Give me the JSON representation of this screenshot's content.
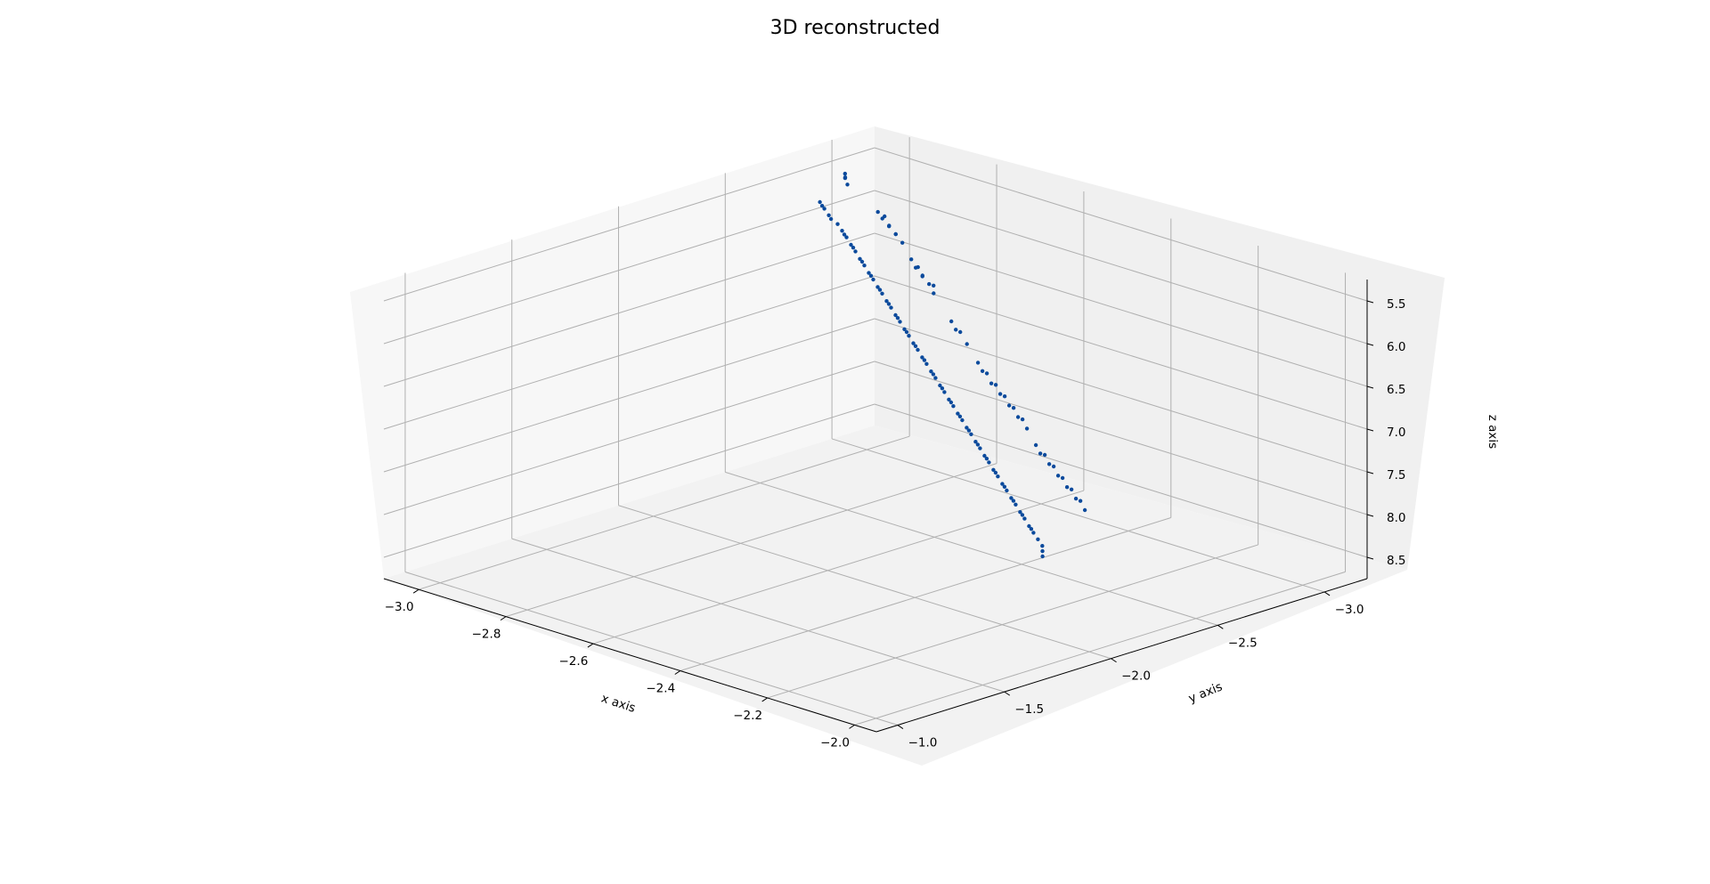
{
  "chart_data": {
    "type": "scatter",
    "title": "3D reconstructed",
    "xlabel": "x axis",
    "ylabel": "y axis",
    "zlabel": "z axis",
    "xlim": [
      -3.08,
      -1.95
    ],
    "ylim": [
      -3.2,
      -0.9
    ],
    "zlim": [
      5.25,
      8.75
    ],
    "z_inverted": true,
    "x_ticks": [
      -3.0,
      -2.8,
      -2.6,
      -2.4,
      -2.2,
      -2.0
    ],
    "x_tick_labels": [
      "−3.0",
      "−2.8",
      "−2.6",
      "−2.4",
      "−2.2",
      "−2.0"
    ],
    "y_ticks": [
      -3.0,
      -2.5,
      -2.0,
      -1.5,
      -1.0
    ],
    "y_tick_labels": [
      "−3.0",
      "−2.5",
      "−2.0",
      "−1.5",
      "−1.0"
    ],
    "z_ticks": [
      5.5,
      6.0,
      6.5,
      7.0,
      7.5,
      8.0,
      8.5
    ],
    "z_tick_labels": [
      "5.5",
      "6.0",
      "6.5",
      "7.0",
      "7.5",
      "8.0",
      "8.5"
    ],
    "grid": true,
    "series": [
      {
        "color": "#0b4a9c",
        "points": [
          [
            -2.99,
            -2.76,
            5.65
          ],
          [
            -2.97,
            -2.74,
            5.68
          ],
          [
            -2.95,
            -2.72,
            5.71
          ],
          [
            -2.92,
            -2.7,
            5.75
          ],
          [
            -2.9,
            -2.68,
            5.78
          ],
          [
            -2.88,
            -2.66,
            5.81
          ],
          [
            -2.86,
            -2.64,
            5.85
          ],
          [
            -2.84,
            -2.62,
            5.88
          ],
          [
            -2.82,
            -2.6,
            5.92
          ],
          [
            -2.8,
            -2.58,
            5.95
          ],
          [
            -2.78,
            -2.56,
            5.99
          ],
          [
            -2.76,
            -2.54,
            6.02
          ],
          [
            -2.74,
            -2.52,
            6.06
          ],
          [
            -2.72,
            -2.5,
            6.09
          ],
          [
            -2.7,
            -2.48,
            6.13
          ],
          [
            -2.68,
            -2.46,
            6.16
          ],
          [
            -2.66,
            -2.44,
            6.2
          ],
          [
            -2.64,
            -2.42,
            6.23
          ],
          [
            -2.62,
            -2.4,
            6.27
          ],
          [
            -2.6,
            -2.38,
            6.3
          ],
          [
            -2.58,
            -2.36,
            6.34
          ],
          [
            -2.56,
            -2.34,
            6.37
          ],
          [
            -2.54,
            -2.32,
            6.41
          ],
          [
            -2.52,
            -2.3,
            6.44
          ],
          [
            -2.5,
            -2.28,
            6.48
          ],
          [
            -2.48,
            -2.26,
            6.51
          ],
          [
            -2.46,
            -2.24,
            6.55
          ],
          [
            -2.44,
            -2.22,
            6.58
          ],
          [
            -2.42,
            -2.2,
            6.62
          ],
          [
            -2.4,
            -2.18,
            6.65
          ],
          [
            -2.38,
            -2.16,
            6.69
          ],
          [
            -2.36,
            -2.14,
            6.72
          ],
          [
            -2.34,
            -2.12,
            6.76
          ],
          [
            -2.32,
            -2.1,
            6.79
          ],
          [
            -2.3,
            -2.08,
            6.83
          ],
          [
            -2.28,
            -2.06,
            6.86
          ],
          [
            -2.26,
            -2.04,
            6.9
          ],
          [
            -2.24,
            -2.02,
            6.93
          ],
          [
            -2.22,
            -2.0,
            6.97
          ],
          [
            -2.2,
            -1.98,
            7.0
          ],
          [
            -2.18,
            -1.96,
            7.04
          ],
          [
            -2.16,
            -1.94,
            7.07
          ],
          [
            -2.14,
            -1.92,
            7.11
          ],
          [
            -2.12,
            -1.9,
            7.14
          ],
          [
            -2.1,
            -1.88,
            7.18
          ],
          [
            -2.08,
            -1.86,
            7.21
          ],
          [
            -2.06,
            -1.84,
            7.25
          ],
          [
            -2.04,
            -1.82,
            7.28
          ],
          [
            -2.98,
            -2.75,
            5.67
          ],
          [
            -2.94,
            -2.71,
            5.73
          ],
          [
            -2.89,
            -2.67,
            5.8
          ],
          [
            -2.85,
            -2.63,
            5.86
          ],
          [
            -2.81,
            -2.59,
            5.93
          ],
          [
            -2.77,
            -2.55,
            6.0
          ],
          [
            -2.73,
            -2.51,
            6.07
          ],
          [
            -2.69,
            -2.47,
            6.14
          ],
          [
            -2.65,
            -2.43,
            6.21
          ],
          [
            -2.61,
            -2.39,
            6.28
          ],
          [
            -2.57,
            -2.35,
            6.35
          ],
          [
            -2.53,
            -2.31,
            6.42
          ],
          [
            -2.49,
            -2.27,
            6.49
          ],
          [
            -2.45,
            -2.23,
            6.56
          ],
          [
            -2.41,
            -2.19,
            6.63
          ],
          [
            -2.37,
            -2.15,
            6.7
          ],
          [
            -2.33,
            -2.11,
            6.77
          ],
          [
            -2.29,
            -2.07,
            6.84
          ],
          [
            -2.25,
            -2.03,
            6.91
          ],
          [
            -2.21,
            -1.99,
            6.98
          ],
          [
            -2.17,
            -1.95,
            7.05
          ],
          [
            -2.13,
            -1.91,
            7.12
          ],
          [
            -2.09,
            -1.87,
            7.19
          ],
          [
            -2.05,
            -1.83,
            7.26
          ],
          [
            -2.02,
            -1.8,
            7.31
          ],
          [
            -2.0,
            -1.78,
            7.34
          ],
          [
            -1.99,
            -1.76,
            7.37
          ],
          [
            -1.98,
            -1.74,
            7.4
          ],
          [
            -3.05,
            -3.0,
            5.6
          ],
          [
            -3.04,
            -2.98,
            5.62
          ],
          [
            -3.03,
            -2.96,
            5.58
          ],
          [
            -3.02,
            -2.95,
            5.64
          ],
          [
            -2.95,
            -2.95,
            5.85
          ],
          [
            -2.93,
            -2.93,
            5.88
          ],
          [
            -2.92,
            -2.92,
            5.83
          ],
          [
            -2.9,
            -2.9,
            5.9
          ],
          [
            -2.89,
            -2.88,
            5.86
          ],
          [
            -2.87,
            -2.87,
            5.92
          ],
          [
            -2.86,
            -2.85,
            5.89
          ],
          [
            -2.84,
            -2.84,
            5.95
          ],
          [
            -2.8,
            -2.8,
            6.05
          ],
          [
            -2.78,
            -2.78,
            6.1
          ],
          [
            -2.77,
            -2.77,
            6.07
          ],
          [
            -2.75,
            -2.75,
            6.13
          ],
          [
            -2.74,
            -2.73,
            6.09
          ],
          [
            -2.72,
            -2.72,
            6.15
          ],
          [
            -2.7,
            -2.7,
            6.12
          ],
          [
            -2.69,
            -2.68,
            6.18
          ],
          [
            -2.62,
            -2.62,
            6.35
          ],
          [
            -2.6,
            -2.6,
            6.4
          ],
          [
            -2.58,
            -2.58,
            6.38
          ],
          [
            -2.55,
            -2.55,
            6.45
          ],
          [
            -2.5,
            -2.5,
            6.55
          ],
          [
            -2.48,
            -2.48,
            6.6
          ],
          [
            -2.46,
            -2.46,
            6.58
          ],
          [
            -2.44,
            -2.44,
            6.65
          ],
          [
            -2.42,
            -2.42,
            6.62
          ],
          [
            -2.4,
            -2.4,
            6.68
          ],
          [
            -2.38,
            -2.38,
            6.66
          ],
          [
            -2.36,
            -2.36,
            6.72
          ],
          [
            -2.34,
            -2.34,
            6.7
          ],
          [
            -2.32,
            -2.32,
            6.76
          ],
          [
            -2.3,
            -2.3,
            6.74
          ],
          [
            -2.28,
            -2.28,
            6.8
          ],
          [
            -2.24,
            -2.24,
            6.9
          ],
          [
            -2.22,
            -2.22,
            6.95
          ],
          [
            -2.2,
            -2.2,
            6.92
          ],
          [
            -2.18,
            -2.18,
            6.98
          ],
          [
            -2.16,
            -2.16,
            6.96
          ],
          [
            -2.14,
            -2.14,
            7.02
          ],
          [
            -2.12,
            -2.12,
            7.0
          ],
          [
            -2.1,
            -2.1,
            7.06
          ],
          [
            -2.08,
            -2.08,
            7.04
          ],
          [
            -2.06,
            -2.06,
            7.1
          ],
          [
            -2.04,
            -2.04,
            7.08
          ],
          [
            -2.02,
            -2.02,
            7.14
          ]
        ]
      }
    ]
  }
}
